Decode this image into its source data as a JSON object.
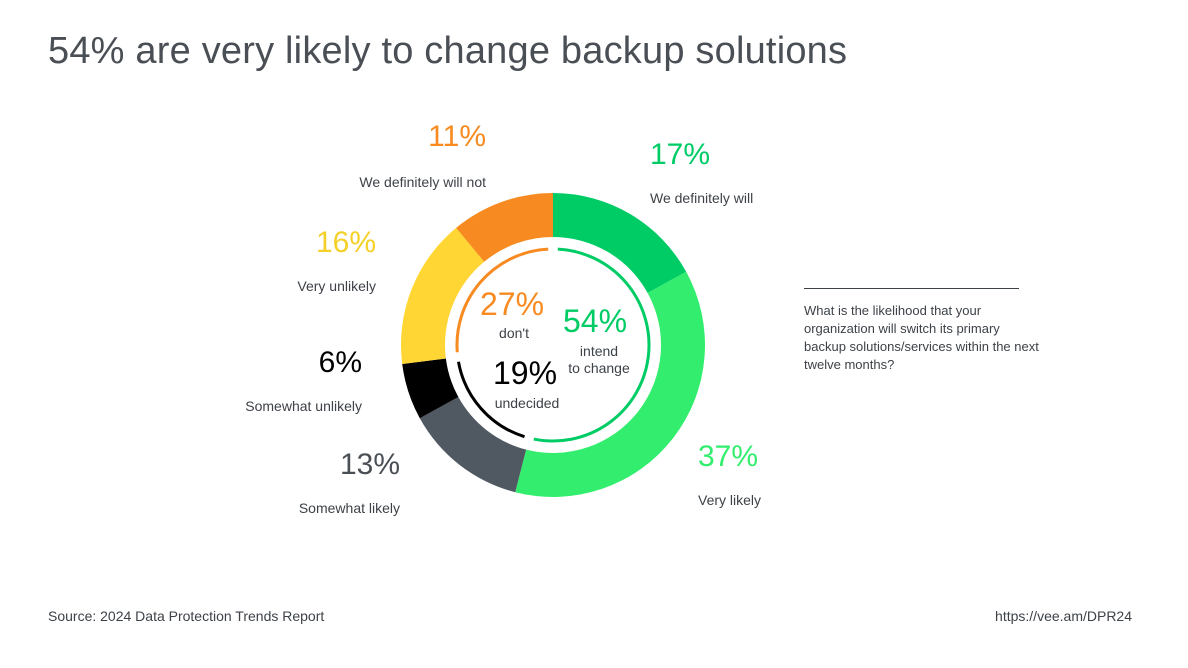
{
  "title": "54% are very likely to change backup solutions",
  "question": "What is the likelihood that your organization will switch its primary backup solutions/services within the next twelve months?",
  "source": "Source: 2024 Data Protection Trends Report",
  "url": "https://vee.am/DPR24",
  "chart_data": {
    "type": "pie",
    "title": "54% are very likely to change backup solutions",
    "categories": [
      "We definitely will",
      "Very likely",
      "Somewhat likely",
      "Somewhat unlikely",
      "Very unlikely",
      "We definitely will not"
    ],
    "values": [
      17,
      37,
      13,
      6,
      16,
      11
    ],
    "value_labels": [
      "17%",
      "37%",
      "13%",
      "6%",
      "16%",
      "11%"
    ],
    "colors": [
      "#00cc66",
      "#33ee6e",
      "#505861",
      "#000000",
      "#ffd633",
      "#f78b21"
    ],
    "groups": [
      {
        "pct": "54%",
        "value": 54,
        "label_line1": "intend",
        "label_line2": "to change",
        "color": "#00cc66"
      },
      {
        "pct": "27%",
        "value": 27,
        "label_line1": "don't",
        "label_line2": "",
        "color": "#f78b21"
      },
      {
        "pct": "19%",
        "value": 19,
        "label_line1": "undecided",
        "label_line2": "",
        "color": "#000000"
      }
    ]
  }
}
